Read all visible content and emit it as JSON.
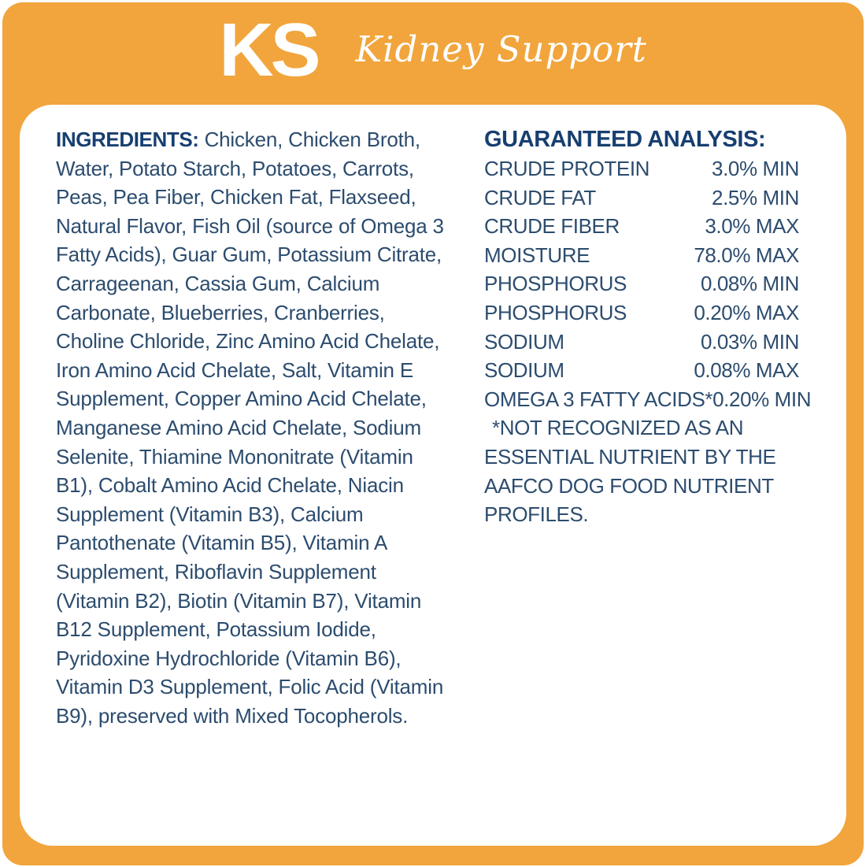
{
  "brand": {
    "abbreviation": "KS",
    "product_name": "Kidney Support"
  },
  "colors": {
    "background_orange": "#F1A53C",
    "heading_navy": "#173F70",
    "body_blue": "#2C4C6E",
    "panel_white": "#FFFFFF"
  },
  "ingredients": {
    "label": "INGREDIENTS:",
    "text": "Chicken, Chicken Broth, Water, Potato Starch, Potatoes, Carrots, Peas, Pea Fiber, Chicken Fat, Flaxseed, Natural Flavor, Fish Oil (source of Omega 3 Fatty Acids), Guar Gum, Potassium Citrate, Carrageenan, Cassia Gum, Calcium Carbonate, Blueberries, Cranberries, Choline Chloride, Zinc Amino Acid Chelate, Iron Amino Acid Chelate, Salt, Vitamin E Supplement, Copper Amino Acid Chelate, Manganese Amino Acid Chelate, Sodium Selenite, Thiamine Mononitrate (Vitamin B1), Cobalt Amino Acid Chelate, Niacin Supplement (Vitamin B3), Calcium Pantothenate (Vitamin B5), Vitamin A Supplement, Riboflavin Supplement (Vitamin B2), Biotin (Vitamin B7), Vitamin B12 Supplement, Potassium Iodide, Pyridoxine Hydrochloride (Vitamin B6), Vitamin D3 Supplement, Folic Acid (Vitamin B9), preserved with Mixed Tocopherols."
  },
  "guaranteed_analysis": {
    "title": "GUARANTEED ANALYSIS:",
    "rows": [
      {
        "nutrient": "CRUDE PROTEIN",
        "value": "3.0% MIN"
      },
      {
        "nutrient": "CRUDE FAT",
        "value": "2.5% MIN"
      },
      {
        "nutrient": "CRUDE FIBER",
        "value": "3.0% MAX"
      },
      {
        "nutrient": "MOISTURE",
        "value": "78.0% MAX"
      },
      {
        "nutrient": "PHOSPHORUS",
        "value": "0.08% MIN"
      },
      {
        "nutrient": "PHOSPHORUS",
        "value": "0.20% MAX"
      },
      {
        "nutrient": "SODIUM",
        "value": "0.03% MIN"
      },
      {
        "nutrient": "SODIUM",
        "value": "0.08% MAX"
      },
      {
        "nutrient": "OMEGA 3 FATTY ACIDS*",
        "value": "0.20% MIN"
      }
    ],
    "footnote": "*NOT RECOGNIZED AS AN ESSENTIAL NUTRIENT BY THE AAFCO DOG FOOD NUTRIENT PROFILES."
  }
}
